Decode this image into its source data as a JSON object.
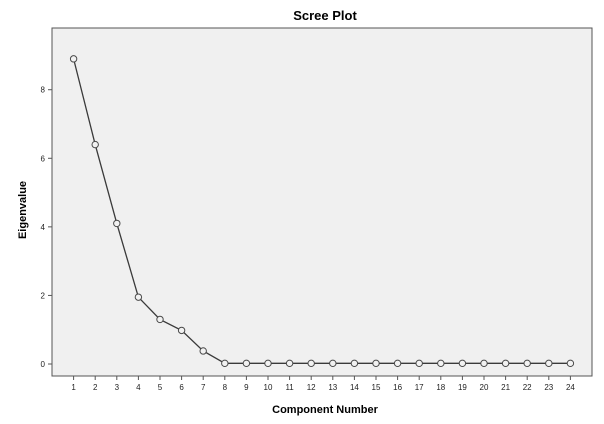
{
  "chart_data": {
    "type": "line",
    "title": "Scree Plot",
    "xlabel": "Component Number",
    "ylabel": "Eigenvalue",
    "x": [
      1,
      2,
      3,
      4,
      5,
      6,
      7,
      8,
      9,
      10,
      11,
      12,
      13,
      14,
      15,
      16,
      17,
      18,
      19,
      20,
      21,
      22,
      23,
      24
    ],
    "series": [
      {
        "values": [
          8.9,
          6.4,
          4.1,
          1.95,
          1.3,
          0.98,
          0.38,
          0.02,
          0.02,
          0.02,
          0.02,
          0.02,
          0.02,
          0.02,
          0.02,
          0.02,
          0.02,
          0.02,
          0.02,
          0.02,
          0.02,
          0.02,
          0.02,
          0.02
        ]
      }
    ],
    "xticks": [
      "1",
      "2",
      "3",
      "4",
      "5",
      "6",
      "7",
      "8",
      "9",
      "10",
      "11",
      "12",
      "13",
      "14",
      "15",
      "16",
      "17",
      "18",
      "19",
      "20",
      "21",
      "22",
      "23",
      "24"
    ],
    "yticks": [
      0,
      2,
      4,
      6,
      8
    ],
    "yticklabels": [
      "0",
      "2",
      "4",
      "6",
      "8"
    ],
    "ylim": [
      -0.35,
      9.8
    ],
    "xlim": [
      0,
      25
    ],
    "grid": false,
    "legend": "none",
    "colors": {
      "line": "#3a3a3a",
      "marker_edge": "#4a4a4a",
      "marker_fill": "#f2f2f2",
      "plot_background": "#f0f0f0",
      "frame": "#555555"
    }
  }
}
